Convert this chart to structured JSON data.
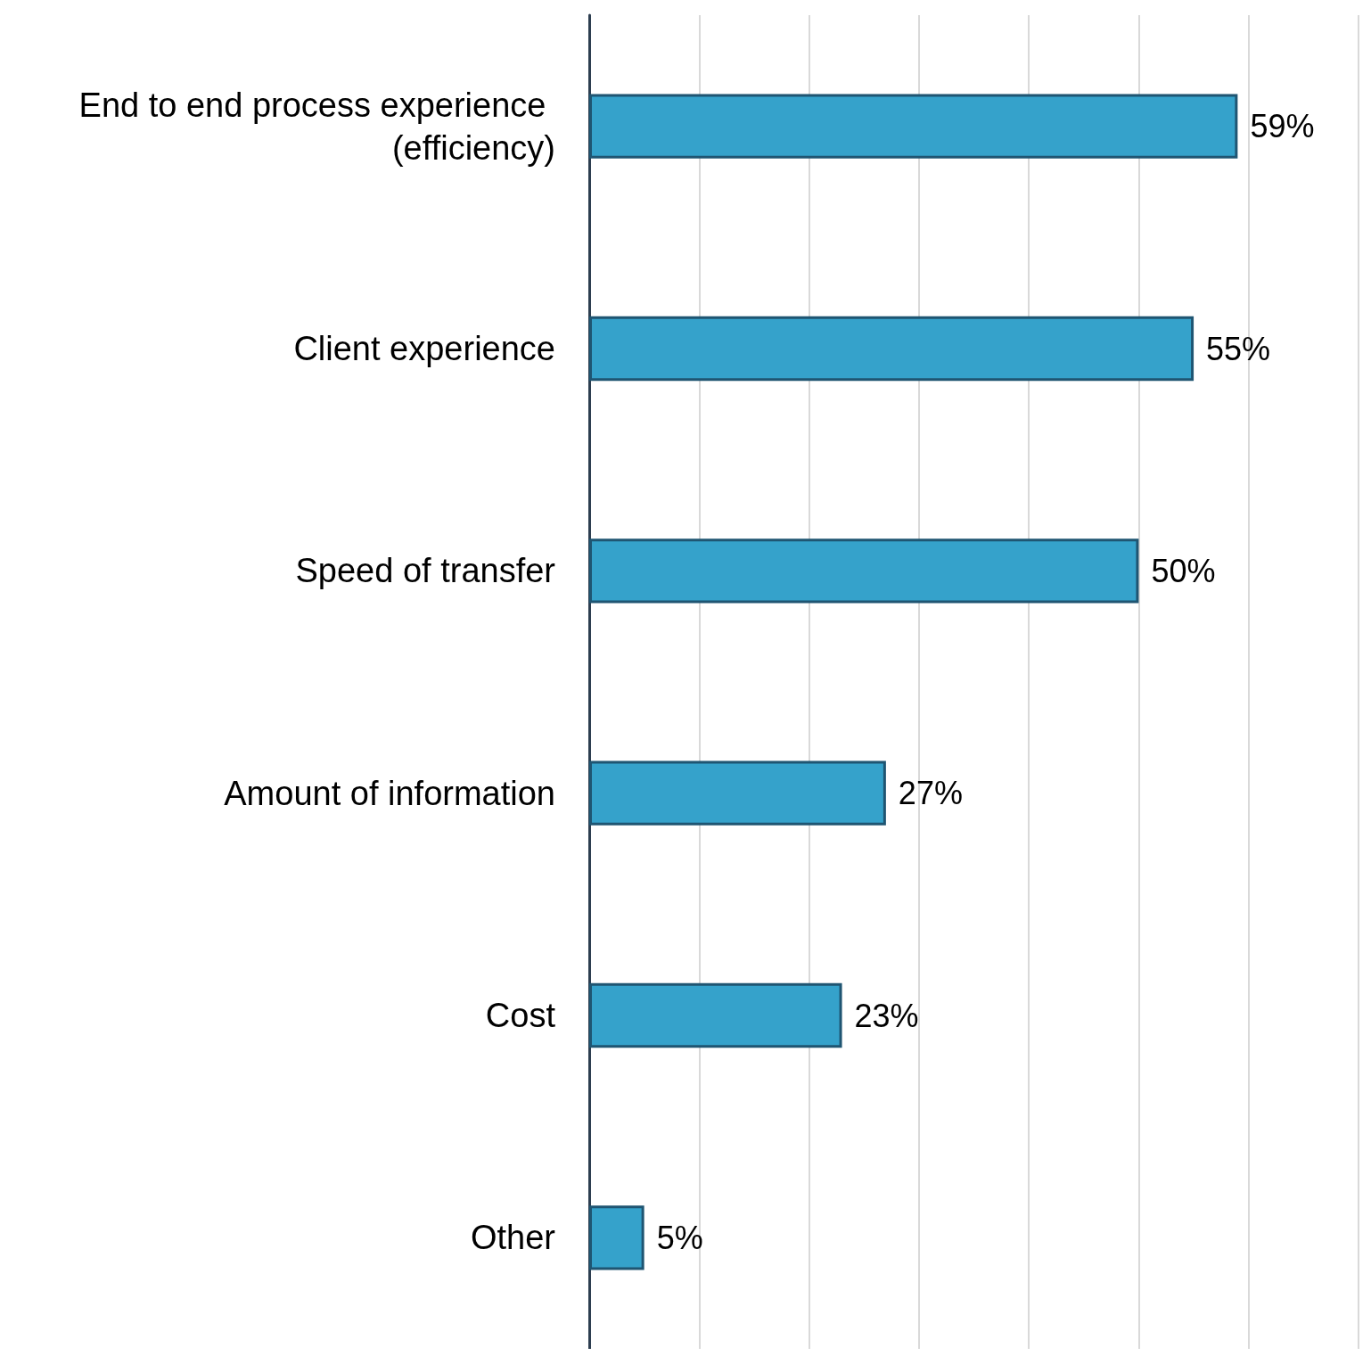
{
  "chart_data": {
    "type": "bar",
    "orientation": "horizontal",
    "categories": [
      "End to end process experience (efficiency)",
      "Client experience",
      "Speed of transfer",
      "Amount of information",
      "Cost",
      "Other"
    ],
    "values": [
      59,
      55,
      50,
      27,
      23,
      5
    ],
    "value_labels": [
      "59%",
      "55%",
      "50%",
      "27%",
      "23%",
      "5%"
    ],
    "color": "#35a2cb",
    "xlim": [
      0,
      70
    ],
    "xticks": [
      {
        "value": 0,
        "label": null
      },
      {
        "value": 10,
        "label": null
      },
      {
        "value": 20,
        "label": null
      },
      {
        "value": 30,
        "label": null
      },
      {
        "value": 40,
        "label": null
      },
      {
        "value": 50,
        "label": null
      },
      {
        "value": 60,
        "label": null
      },
      {
        "value": 70,
        "label": null
      }
    ],
    "grid": "x",
    "tick_labels": "y"
  }
}
